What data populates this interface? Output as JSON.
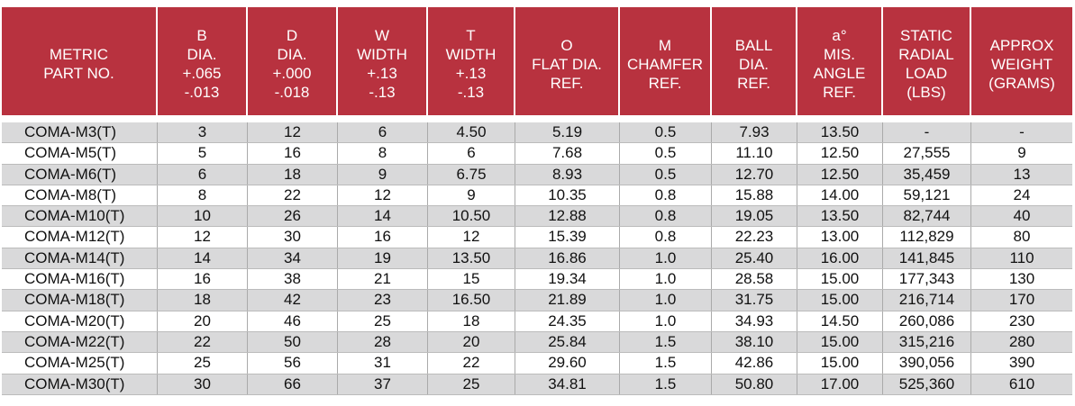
{
  "header": {
    "columns": [
      [
        "METRIC",
        "PART NO."
      ],
      [
        "B",
        "DIA.",
        "+.065",
        "-.013"
      ],
      [
        "D",
        "DIA.",
        "+.000",
        "-.018"
      ],
      [
        "W",
        "WIDTH",
        "+.13",
        "-.13"
      ],
      [
        "T",
        "WIDTH",
        "+.13",
        "-.13"
      ],
      [
        "O",
        "FLAT DIA.",
        "REF."
      ],
      [
        "M",
        "CHAMFER",
        "REF."
      ],
      [
        "BALL",
        "DIA.",
        "REF."
      ],
      [
        "a°",
        "MIS.",
        "ANGLE",
        "REF."
      ],
      [
        "STATIC",
        "RADIAL",
        "LOAD",
        "(LBS)"
      ],
      [
        "APPROX",
        "WEIGHT",
        "(GRAMS)"
      ]
    ]
  },
  "table": {
    "rows": [
      [
        "COMA-M3(T)",
        "3",
        "12",
        "6",
        "4.50",
        "5.19",
        "0.5",
        "7.93",
        "13.50",
        "-",
        "-"
      ],
      [
        "COMA-M5(T)",
        "5",
        "16",
        "8",
        "6",
        "7.68",
        "0.5",
        "11.10",
        "12.50",
        "27,555",
        "9"
      ],
      [
        "COMA-M6(T)",
        "6",
        "18",
        "9",
        "6.75",
        "8.93",
        "0.5",
        "12.70",
        "12.50",
        "35,459",
        "13"
      ],
      [
        "COMA-M8(T)",
        "8",
        "22",
        "12",
        "9",
        "10.35",
        "0.8",
        "15.88",
        "14.00",
        "59,121",
        "24"
      ],
      [
        "COMA-M10(T)",
        "10",
        "26",
        "14",
        "10.50",
        "12.88",
        "0.8",
        "19.05",
        "13.50",
        "82,744",
        "40"
      ],
      [
        "COMA-M12(T)",
        "12",
        "30",
        "16",
        "12",
        "15.39",
        "0.8",
        "22.23",
        "13.00",
        "112,829",
        "80"
      ],
      [
        "COMA-M14(T)",
        "14",
        "34",
        "19",
        "13.50",
        "16.86",
        "1.0",
        "25.40",
        "16.00",
        "141,845",
        "110"
      ],
      [
        "COMA-M16(T)",
        "16",
        "38",
        "21",
        "15",
        "19.34",
        "1.0",
        "28.58",
        "15.00",
        "177,343",
        "130"
      ],
      [
        "COMA-M18(T)",
        "18",
        "42",
        "23",
        "16.50",
        "21.89",
        "1.0",
        "31.75",
        "15.00",
        "216,714",
        "170"
      ],
      [
        "COMA-M20(T)",
        "20",
        "46",
        "25",
        "18",
        "24.35",
        "1.0",
        "34.93",
        "14.50",
        "260,086",
        "230"
      ],
      [
        "COMA-M22(T)",
        "22",
        "50",
        "28",
        "20",
        "25.84",
        "1.5",
        "38.10",
        "15.00",
        "315,216",
        "280"
      ],
      [
        "COMA-M25(T)",
        "25",
        "56",
        "31",
        "22",
        "29.60",
        "1.5",
        "42.86",
        "15.00",
        "390,056",
        "390"
      ],
      [
        "COMA-M30(T)",
        "30",
        "66",
        "37",
        "25",
        "34.81",
        "1.5",
        "50.80",
        "17.00",
        "525,360",
        "610"
      ]
    ]
  }
}
